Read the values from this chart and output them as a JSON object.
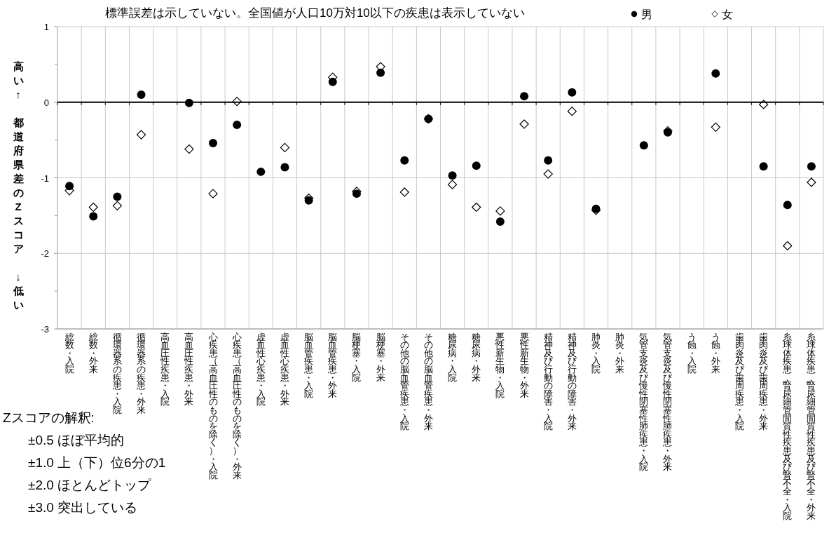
{
  "chart_data": {
    "type": "scatter",
    "title": "標準誤差は示していない。全国値が人口10万対10以下の疾患は表示していない",
    "ylabel": "高い↑　都道府県差のZスコア　↓低い",
    "categories": [
      "総数・入院",
      "総数・外来",
      "循環器系の疾患・入院",
      "循環器系の疾患・外来",
      "高血圧性疾患・入院",
      "高血圧性疾患・外来",
      "心疾患（高血圧性のものを除く）・入院",
      "心疾患（高血圧性のものを除く）・外来",
      "虚血性心疾患・入院",
      "虚血性心疾患・外来",
      "脳血管疾患・入院",
      "脳血管疾患・外来",
      "脳梗塞・入院",
      "脳梗塞・外来",
      "その他の脳血管疾患・入院",
      "その他の脳血管疾患・外来",
      "糖尿病・入院",
      "糖尿病・外来",
      "悪性新生物・入院",
      "悪性新生物・外来",
      "精神及び行動の障害・入院",
      "精神及び行動の障害・外来",
      "肺炎・入院",
      "肺炎・外来",
      "気管支炎及び慢性閉塞性肺疾患・入院",
      "気管支炎及び慢性閉塞性肺疾患・外来",
      "う蝕・入院",
      "う蝕・外来",
      "歯肉炎及び歯周疾患・入院",
      "歯肉炎及び歯周疾患・外来",
      "糸球体疾患，腎尿細管間質性疾患及び腎不全・入院",
      "糸球体疾患，腎尿細管間質性疾患及び腎不全・外来"
    ],
    "series": [
      {
        "name": "男",
        "color": "#000000",
        "marker": "circle",
        "values": [
          -1.11,
          -1.51,
          -1.25,
          0.1,
          null,
          -0.01,
          -0.54,
          -0.3,
          -0.92,
          -0.86,
          -1.3,
          0.27,
          -1.21,
          0.39,
          -0.77,
          -0.22,
          -0.97,
          -0.84,
          -1.58,
          0.08,
          -0.77,
          0.13,
          -1.41,
          null,
          -0.57,
          -0.4,
          null,
          0.38,
          null,
          -0.85,
          -1.36,
          -0.85
        ]
      },
      {
        "name": "女",
        "color": "#000000",
        "marker": "diamond",
        "values": [
          -1.17,
          -1.39,
          -1.37,
          -0.43,
          null,
          -0.62,
          -1.21,
          0.01,
          null,
          -0.6,
          -1.27,
          0.33,
          -1.18,
          0.47,
          -1.19,
          -0.22,
          -1.09,
          -1.39,
          -1.44,
          -0.29,
          -0.95,
          -0.12,
          -1.43,
          null,
          null,
          -0.38,
          null,
          -0.33,
          null,
          -0.03,
          -1.9,
          -1.06
        ]
      }
    ],
    "ylim": [
      -3,
      1
    ],
    "yticks": [
      -3,
      -2,
      -1,
      0,
      1
    ],
    "grid": true,
    "legend": "top right",
    "annotations": [
      "Zスコアの解釈:",
      "±0.5 ほぼ平均的",
      "±1.0 上（下）位6分の1",
      "±2.0 ほとんどトップ",
      "±3.0 突出している"
    ]
  }
}
